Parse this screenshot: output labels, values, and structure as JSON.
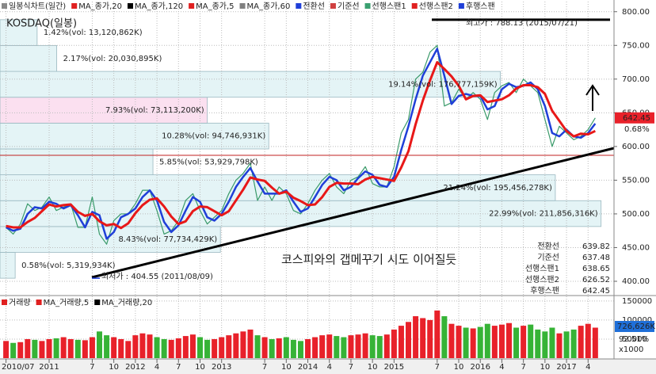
{
  "chart_data": {
    "type": "line",
    "title": "KOSDAQ(일봉)",
    "legend": [
      {
        "name": "일봉식차트(일간)",
        "color": "#888888"
      },
      {
        "name": "MA_종가,20",
        "color": "#e02020"
      },
      {
        "name": "MA_종가,120",
        "color": "#000000"
      },
      {
        "name": "MA_종가,5",
        "color": "#e02020"
      },
      {
        "name": "MA_종가,60",
        "color": "#808080"
      },
      {
        "name": "전환선",
        "color": "#1f3fd8"
      },
      {
        "name": "기준선",
        "color": "#d04040"
      },
      {
        "name": "선행스팬1",
        "color": "#3aa070"
      },
      {
        "name": "선행스팬2",
        "color": "#e02020"
      },
      {
        "name": "후행스팬",
        "color": "#1f3fd8"
      }
    ],
    "categories": [
      "2010/07",
      null,
      null,
      null,
      null,
      null,
      "2011",
      null,
      null,
      null,
      null,
      null,
      "7",
      null,
      null,
      "10",
      null,
      null,
      "2012",
      null,
      null,
      "4",
      null,
      null,
      "7",
      null,
      null,
      "10",
      null,
      null,
      "2013",
      null,
      null,
      null,
      null,
      null,
      "7",
      null,
      null,
      "10",
      null,
      null,
      "2014",
      null,
      null,
      "4",
      null,
      null,
      "7",
      null,
      null,
      "10",
      null,
      null,
      "2015",
      null,
      null,
      null,
      null,
      null,
      "7",
      null,
      null,
      "10",
      null,
      null,
      "2016",
      null,
      null,
      "4",
      null,
      null,
      "7",
      null,
      null,
      "10",
      null,
      null,
      "2017",
      null,
      null,
      "4",
      null
    ],
    "series": [
      {
        "color": "#3a9a6a",
        "width": 1.2,
        "values": [
          480,
          470,
          485,
          515,
          505,
          510,
          525,
          505,
          510,
          515,
          480,
          480,
          525,
          470,
          455,
          490,
          500,
          500,
          515,
          535,
          535,
          505,
          470,
          475,
          490,
          520,
          530,
          505,
          485,
          495,
          505,
          530,
          550,
          560,
          575,
          520,
          540,
          520,
          540,
          530,
          505,
          500,
          515,
          535,
          550,
          560,
          540,
          530,
          550,
          555,
          570,
          545,
          540,
          540,
          570,
          620,
          640,
          700,
          710,
          740,
          750,
          660,
          665,
          685,
          670,
          680,
          670,
          640,
          680,
          690,
          695,
          680,
          700,
          690,
          680,
          640,
          600,
          630,
          620,
          610,
          615,
          625,
          642.45
        ]
      },
      {
        "color": "#1f3fd8",
        "width": 2.5,
        "values": [
          480,
          475,
          478,
          500,
          510,
          508,
          518,
          515,
          508,
          513,
          498,
          480,
          503,
          498,
          463,
          473,
          495,
          500,
          508,
          525,
          535,
          520,
          488,
          473,
          483,
          505,
          525,
          518,
          495,
          490,
          500,
          518,
          540,
          555,
          568,
          548,
          530,
          530,
          530,
          535,
          518,
          503,
          508,
          525,
          543,
          555,
          550,
          535,
          540,
          553,
          563,
          558,
          543,
          540,
          555,
          595,
          630,
          670,
          705,
          725,
          745,
          705,
          663,
          675,
          678,
          675,
          675,
          655,
          660,
          685,
          693,
          688,
          690,
          695,
          685,
          660,
          620,
          615,
          625,
          615,
          613,
          620,
          634
        ]
      },
      {
        "color": "#e81818",
        "width": 3,
        "values": [
          482,
          480,
          480,
          488,
          494,
          504,
          514,
          511,
          513,
          514,
          503,
          497,
          500,
          489,
          483,
          485,
          479,
          486,
          501,
          513,
          521,
          523,
          511,
          496,
          485,
          489,
          504,
          511,
          510,
          504,
          498,
          504,
          520,
          536,
          554,
          551,
          549,
          539,
          530,
          533,
          524,
          519,
          513,
          514,
          525,
          540,
          546,
          545,
          545,
          544,
          551,
          555,
          553,
          551,
          549,
          569,
          593,
          633,
          668,
          698,
          725,
          715,
          704,
          690,
          670,
          675,
          676,
          666,
          668,
          670,
          676,
          686,
          691,
          691,
          688,
          678,
          653,
          638,
          623,
          615,
          619,
          618,
          623
        ]
      }
    ],
    "ylim": [
      380,
      815
    ],
    "yticks": [
      {
        "value": 400,
        "label": "400.00"
      },
      {
        "value": 450,
        "label": "450.00"
      },
      {
        "value": 500,
        "label": "500.00"
      },
      {
        "value": 550,
        "label": "550.00"
      },
      {
        "value": 600,
        "label": "600.00"
      },
      {
        "value": 650,
        "label": "650.00"
      },
      {
        "value": 700,
        "label": "700.00"
      },
      {
        "value": 750,
        "label": "750.00"
      },
      {
        "value": 800,
        "label": "800.00"
      }
    ],
    "grid": true,
    "volume_profile": {
      "bins": [
        404.55,
        442.91,
        481.27,
        519.62,
        557.98,
        596.34,
        634.7,
        673.06,
        711.42,
        749.77,
        788.13
      ],
      "values": [
        0.58,
        8.43,
        22.99,
        21.24,
        5.85,
        10.28,
        7.93,
        19.14,
        2.17,
        1.42
      ],
      "value_labels": [
        "0.58%(vol: 5,319,934K)",
        "8.43%(vol: 77,734,429K)",
        "22.99%(vol: 211,856,316K)",
        "21.24%(vol: 195,456,278K)",
        "5.85%(vol: 53,929,798K)",
        "10.28%(vol: 94,746,931K)",
        "7.93%(vol: 73,113,200K)",
        "19.14%(vol: 176,777,159K)",
        "2.17%(vol: 20,030,895K)",
        "1.42%(vol: 13,120,862K)"
      ],
      "colors": [
        "#e4f4f6",
        "#e4f4f6",
        "#e4f4f6",
        "#e4f4f6",
        "#e4f4f6",
        "#e4f4f6",
        "#fbe0f0",
        "#e4f4f6",
        "#e4f4f6",
        "#e4f4f6"
      ]
    },
    "high": {
      "value": 788.13,
      "label": "최고가 : 788.13 (2015/07/21)"
    },
    "low": {
      "value": 404.55,
      "label": "최저가 : 404.55 (2011/08/09)"
    },
    "annotation": "코스피와의 갭메꾸기 시도 이어질듯",
    "last_price": {
      "value": 642.45,
      "label": "642.45"
    },
    "change": {
      "value": 0.68,
      "label": "0.68%"
    },
    "indicators": [
      {
        "name": "전환선",
        "value": 639.82
      },
      {
        "name": "기준선",
        "value": 637.48
      },
      {
        "name": "선행스팬1",
        "value": 638.65
      },
      {
        "name": "선행스팬2",
        "value": 626.52
      },
      {
        "name": "후행스팬",
        "value": 642.45
      }
    ],
    "volume": {
      "legend": [
        {
          "name": "거래량",
          "color": "#e02020"
        },
        {
          "name": "MA_거래량,5",
          "color": "#e02020"
        },
        {
          "name": "MA_거래량,20",
          "color": "#000000"
        }
      ],
      "values": [
        45000,
        40000,
        42000,
        50000,
        48000,
        45000,
        50000,
        52000,
        55000,
        50000,
        48000,
        47000,
        55000,
        70000,
        60000,
        55000,
        50000,
        45000,
        60000,
        65000,
        62000,
        55000,
        50000,
        48000,
        52000,
        58000,
        62000,
        55000,
        48000,
        50000,
        55000,
        60000,
        65000,
        70000,
        75000,
        60000,
        55000,
        50000,
        52000,
        55000,
        48000,
        45000,
        50000,
        55000,
        60000,
        62000,
        58000,
        55000,
        60000,
        62000,
        65000,
        60000,
        58000,
        62000,
        75000,
        85000,
        95000,
        110000,
        105000,
        100000,
        125000,
        110000,
        90000,
        85000,
        80000,
        78000,
        82000,
        90000,
        85000,
        88000,
        92000,
        80000,
        85000,
        88000,
        75000,
        70000,
        80000,
        65000,
        70000,
        75000,
        85000,
        90000,
        80000
      ],
      "up_color": "#e8212a",
      "down_color": "#36b336",
      "ylim": [
        0,
        160000
      ],
      "yticks": [
        50000,
        100000,
        150000
      ],
      "current_label": "726,626K",
      "ratio_label": "92.51%",
      "unit": "x1000"
    }
  }
}
